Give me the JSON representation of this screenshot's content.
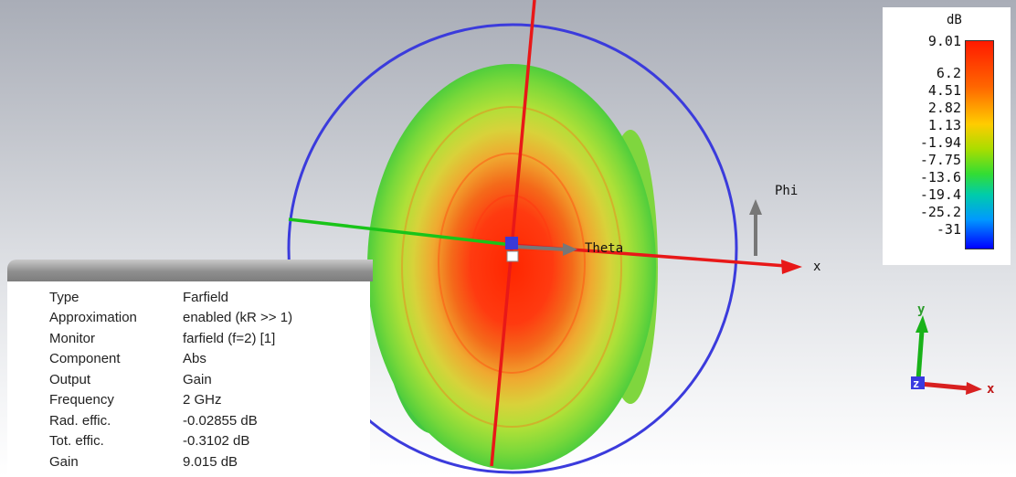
{
  "legend": {
    "unit": "dB",
    "labels": [
      "9.01",
      "6.2",
      "4.51",
      "2.82",
      "1.13",
      "-1.94",
      "-7.75",
      "-13.6",
      "-19.4",
      "-25.2",
      "-31"
    ]
  },
  "axes": {
    "phi": "Phi",
    "theta": "Theta",
    "x": "x"
  },
  "triad": {
    "x": "x",
    "y": "y",
    "z": "z"
  },
  "info": {
    "rows": [
      {
        "key": "Type",
        "value": "Farfield"
      },
      {
        "key": "Approximation",
        "value": "enabled (kR >> 1)"
      },
      {
        "key": "Monitor",
        "value": "farfield (f=2) [1]"
      },
      {
        "key": "Component",
        "value": "Abs"
      },
      {
        "key": "Output",
        "value": "Gain"
      },
      {
        "key": "Frequency",
        "value": "2 GHz"
      },
      {
        "key": "Rad. effic.",
        "value": "-0.02855 dB"
      },
      {
        "key": "Tot. effic.",
        "value": "-0.3102 dB"
      },
      {
        "key": "Gain",
        "value": "9.015 dB"
      }
    ]
  },
  "colors": {
    "circle": "#3b3bdc",
    "x_axis": "#e81818",
    "y_axis": "#19c419",
    "z_axis": "#3a3ae0",
    "pattern_max": "#ff2400",
    "pattern_min": "#44d03a"
  }
}
